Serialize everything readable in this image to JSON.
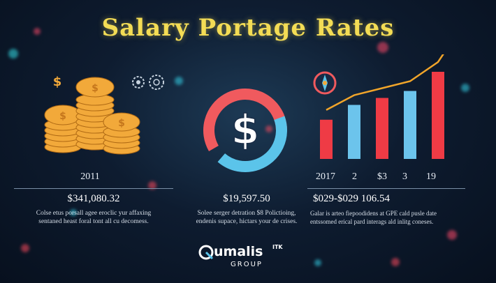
{
  "title": "Salary Portage Rates",
  "columns": [
    {
      "year": "2011",
      "amount": "$341,080.32",
      "desc_line1": "Colse etus porsall agee eroclic yur affaxing",
      "desc_line2": "sentaned heast foral tont all cu decomess."
    },
    {
      "amount": "$19,597.50",
      "desc_line1": "Solee serger detration $8 Polictioing,",
      "desc_line2": "endenis supace, hictars your de crises."
    },
    {
      "ticks": [
        "2017",
        "2",
        "$3",
        "3",
        "19"
      ],
      "amount": "$029-$029 106.54",
      "desc_line1": "Galar is arteo fiepoodidens at GPE cald pusle date",
      "desc_line2": "entssomed erical pard interags ald inlitg coneses."
    }
  ],
  "bars_chart": {
    "bar_levels": [
      0.45,
      0.62,
      0.7,
      0.78,
      1.0
    ]
  },
  "gauge": {
    "symbol": "$"
  },
  "coin_symbol": "$",
  "logo": {
    "name": "umalis",
    "tm": "ITK",
    "group": "GROUP"
  },
  "colors": {
    "title": "#f3dc55",
    "bars": "#ef3b45",
    "bars_alt": "#6cc4ec",
    "trend": "#f1a52a",
    "gauge_red": "#f05a5e",
    "gauge_blue": "#5bc4ea",
    "gold": "#f2a93a"
  }
}
